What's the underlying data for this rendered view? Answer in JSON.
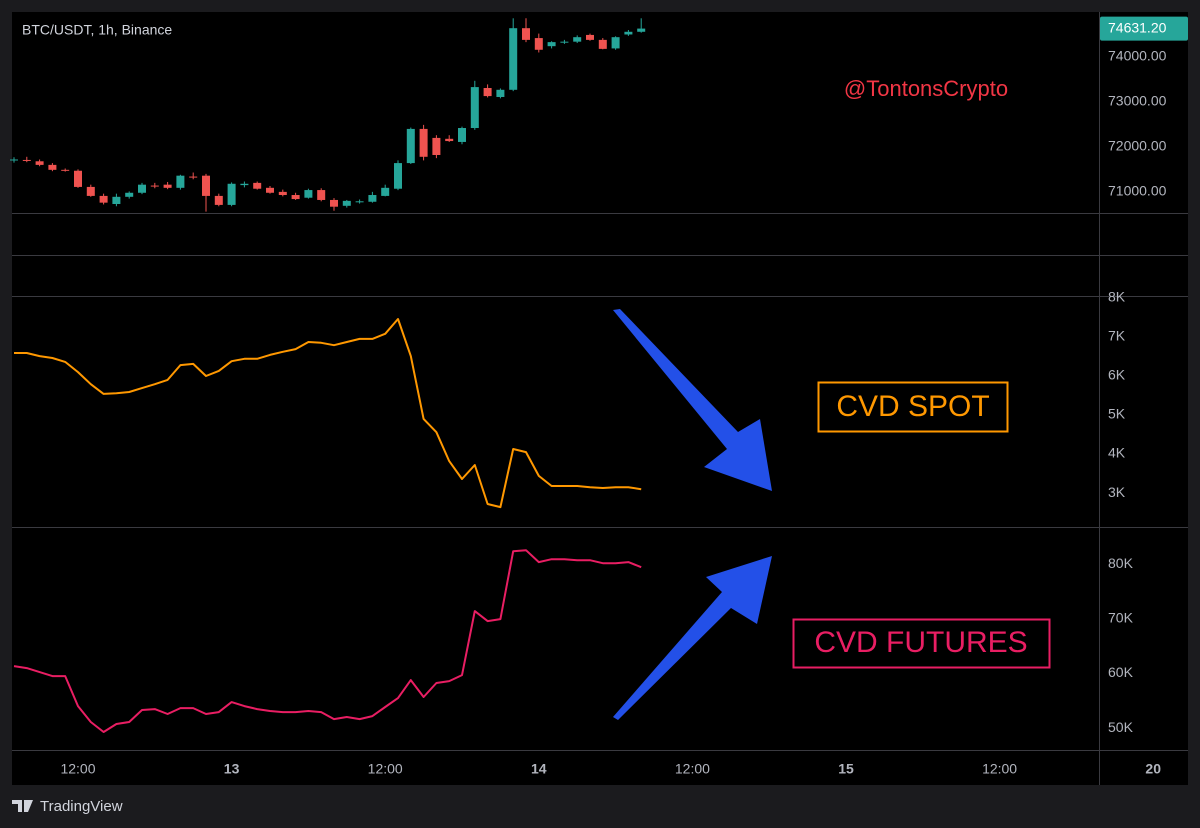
{
  "chart_data": [
    {
      "type": "candlestick",
      "title": "BTC/USDT, 1h, Binance",
      "annotation": "@TontonsCrypto",
      "up_color": "#26a69a",
      "down_color": "#ef5350",
      "open": [
        71700,
        71710,
        71680,
        71600,
        71490,
        71470,
        71110,
        70910,
        70730,
        70890,
        70980,
        71140,
        71160,
        71090,
        71340,
        71360,
        70910,
        70710,
        71150,
        71200,
        71090,
        71000,
        70930,
        70870,
        71040,
        70820,
        70690,
        70780,
        70780,
        70910,
        71070,
        71640,
        72400,
        72200,
        72180,
        72110,
        72420,
        73310,
        73110,
        73270,
        74640,
        74420,
        74240,
        74330,
        74340,
        74490,
        74380,
        74190,
        74500,
        74560
      ],
      "high": [
        71770,
        71780,
        71720,
        71640,
        71520,
        71500,
        71160,
        70960,
        70960,
        71010,
        71200,
        71200,
        71220,
        71380,
        71430,
        71400,
        70960,
        71210,
        71230,
        71230,
        71130,
        71050,
        70980,
        71070,
        71080,
        70860,
        70820,
        70830,
        71000,
        71160,
        71700,
        72430,
        72490,
        72260,
        72260,
        72450,
        73470,
        73390,
        73300,
        74860,
        74860,
        74520,
        74350,
        74380,
        74480,
        74520,
        74420,
        74460,
        74600,
        74860
      ],
      "low": [
        71650,
        71660,
        71570,
        71460,
        71450,
        71090,
        70890,
        70720,
        70680,
        70850,
        70950,
        71080,
        71060,
        71050,
        71280,
        70560,
        70680,
        70680,
        71100,
        71050,
        70960,
        70900,
        70820,
        70850,
        70790,
        70580,
        70650,
        70740,
        70760,
        70900,
        71040,
        71620,
        71700,
        71750,
        72110,
        72060,
        72380,
        73100,
        73080,
        73240,
        74330,
        74100,
        74190,
        74290,
        74310,
        74360,
        74170,
        74160,
        74470,
        74540
      ],
      "close": [
        71720,
        71690,
        71600,
        71490,
        71480,
        71110,
        70910,
        70760,
        70890,
        70980,
        71160,
        71120,
        71090,
        71360,
        71320,
        70910,
        70710,
        71180,
        71180,
        71070,
        70980,
        70930,
        70840,
        71040,
        70820,
        70670,
        70800,
        70790,
        70930,
        71090,
        71640,
        72400,
        71780,
        71820,
        72130,
        72420,
        73330,
        73130,
        73270,
        74640,
        74380,
        74160,
        74330,
        74340,
        74440,
        74380,
        74180,
        74440,
        74560,
        74631.2
      ],
      "last_price_label": "74631.20",
      "ylim": [
        70530,
        75000
      ],
      "yticks": [
        {
          "value": 71000,
          "label": "71000.00"
        },
        {
          "value": 72000,
          "label": "72000.00"
        },
        {
          "value": 73000,
          "label": "73000.00"
        },
        {
          "value": 74000,
          "label": "74000.00"
        }
      ]
    },
    {
      "type": "line",
      "label": "CVD SPOT",
      "color": "#ff9800",
      "values": [
        6590,
        6590,
        6510,
        6460,
        6360,
        6100,
        5790,
        5540,
        5560,
        5590,
        5690,
        5790,
        5900,
        6280,
        6310,
        6000,
        6130,
        6380,
        6440,
        6440,
        6540,
        6620,
        6690,
        6870,
        6850,
        6790,
        6870,
        6950,
        6950,
        7080,
        7460,
        6510,
        4900,
        4560,
        3820,
        3360,
        3720,
        2720,
        2640,
        4130,
        4050,
        3440,
        3180,
        3180,
        3180,
        3150,
        3130,
        3150,
        3150,
        3100
      ],
      "ylim": [
        2130,
        8050
      ],
      "yticks": [
        {
          "value": 3000,
          "label": "3K"
        },
        {
          "value": 4000,
          "label": "4K"
        },
        {
          "value": 5000,
          "label": "5K"
        },
        {
          "value": 6000,
          "label": "6K"
        },
        {
          "value": 7000,
          "label": "7K"
        },
        {
          "value": 8000,
          "label": "8K"
        }
      ]
    },
    {
      "type": "line",
      "label": "CVD FUTURES",
      "color": "#e91e63",
      "values": [
        61350,
        60990,
        60260,
        59520,
        59520,
        54040,
        51120,
        49290,
        50750,
        51120,
        53310,
        53490,
        52580,
        53670,
        53670,
        52580,
        52940,
        54770,
        54040,
        53490,
        53130,
        52940,
        52940,
        53130,
        52940,
        51660,
        52030,
        51660,
        52210,
        53860,
        55500,
        58790,
        55690,
        58250,
        58610,
        59710,
        71410,
        69580,
        69950,
        82380,
        82560,
        80370,
        80910,
        80910,
        80730,
        80730,
        80180,
        80180,
        80370,
        79450
      ],
      "ylim": [
        46000,
        86800
      ],
      "yticks": [
        {
          "value": 50000,
          "label": "50K"
        },
        {
          "value": 60000,
          "label": "60K"
        },
        {
          "value": 70000,
          "label": "70K"
        },
        {
          "value": 80000,
          "label": "80K"
        }
      ]
    }
  ],
  "time_axis": {
    "labels": [
      "12:00",
      "13",
      "12:00",
      "14",
      "12:00",
      "15",
      "12:00",
      "20"
    ]
  },
  "footer": {
    "brand": "TradingView"
  }
}
